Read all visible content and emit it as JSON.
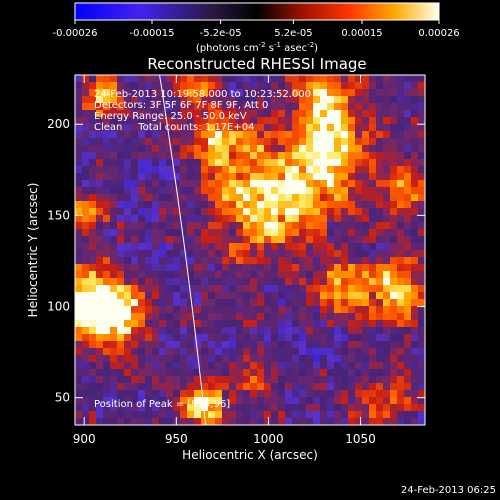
{
  "chart_data": {
    "type": "heatmap",
    "title": "Reconstructed RHESSI Image",
    "xlabel": "Heliocentric X (arcsec)",
    "ylabel": "Heliocentric Y (arcsec)",
    "xlim": [
      895,
      1085
    ],
    "ylim": [
      35,
      227
    ],
    "xticks": [
      900,
      950,
      1000,
      1050
    ],
    "yticks": [
      50,
      100,
      150,
      200
    ],
    "colorbar": {
      "ticks": [
        "-0.00026",
        "-0.00015",
        "-5.2e-05",
        "5.2e-05",
        "0.00015",
        "0.00026"
      ],
      "tick_values": [
        -0.00026,
        -0.00015,
        -5.2e-05,
        5.2e-05,
        0.00015,
        0.00026
      ],
      "units_line_1": "(photons cm",
      "units_exp_1": "-2",
      "units_line_2": " s",
      "units_exp_2": "-1",
      "units_line_3": " asec",
      "units_exp_3": "-2",
      "units_close": ")",
      "range": [
        -0.00026,
        0.00026
      ]
    },
    "info_lines": [
      "24-Feb-2013 10:19:58.000 to 10:23:52.000",
      "Detectors: 3F 5F 6F 7F 8F 9F, Att 0",
      "Energy Range: 25.0 - 50.0 keV",
      "Clean     Total counts: 1.17E+04"
    ],
    "peak_label": "Position of Peak = [915,96]",
    "peak_position": [
      915,
      96
    ],
    "colormap": [
      "#1a1aff",
      "#6633cc",
      "#3a1f66",
      "#ff3300",
      "#ff9900",
      "#ffee66",
      "#ffffff"
    ],
    "bright_sources": [
      {
        "x": 905,
        "y": 100,
        "level": 0.95,
        "spread": 14
      },
      {
        "x": 915,
        "y": 96,
        "level": 1.0,
        "spread": 9
      },
      {
        "x": 908,
        "y": 215,
        "level": 0.6,
        "spread": 10
      },
      {
        "x": 900,
        "y": 150,
        "level": 0.55,
        "spread": 9
      },
      {
        "x": 965,
        "y": 45,
        "level": 0.9,
        "spread": 8
      },
      {
        "x": 1000,
        "y": 160,
        "level": 0.85,
        "spread": 22
      },
      {
        "x": 1035,
        "y": 185,
        "level": 0.8,
        "spread": 16
      },
      {
        "x": 1030,
        "y": 215,
        "level": 0.75,
        "spread": 10
      },
      {
        "x": 975,
        "y": 190,
        "level": 0.7,
        "spread": 9
      },
      {
        "x": 1070,
        "y": 110,
        "level": 0.75,
        "spread": 12
      },
      {
        "x": 1040,
        "y": 110,
        "level": 0.6,
        "spread": 10
      },
      {
        "x": 1075,
        "y": 165,
        "level": 0.55,
        "spread": 10
      },
      {
        "x": 990,
        "y": 60,
        "level": 0.45,
        "spread": 10
      },
      {
        "x": 960,
        "y": 220,
        "level": 0.55,
        "spread": 8
      },
      {
        "x": 1060,
        "y": 50,
        "level": 0.4,
        "spread": 12
      }
    ],
    "limb": {
      "x_at_top": 944,
      "x_at_bottom": 966
    }
  },
  "footer": {
    "date": "24-Feb-2013 06:25"
  }
}
